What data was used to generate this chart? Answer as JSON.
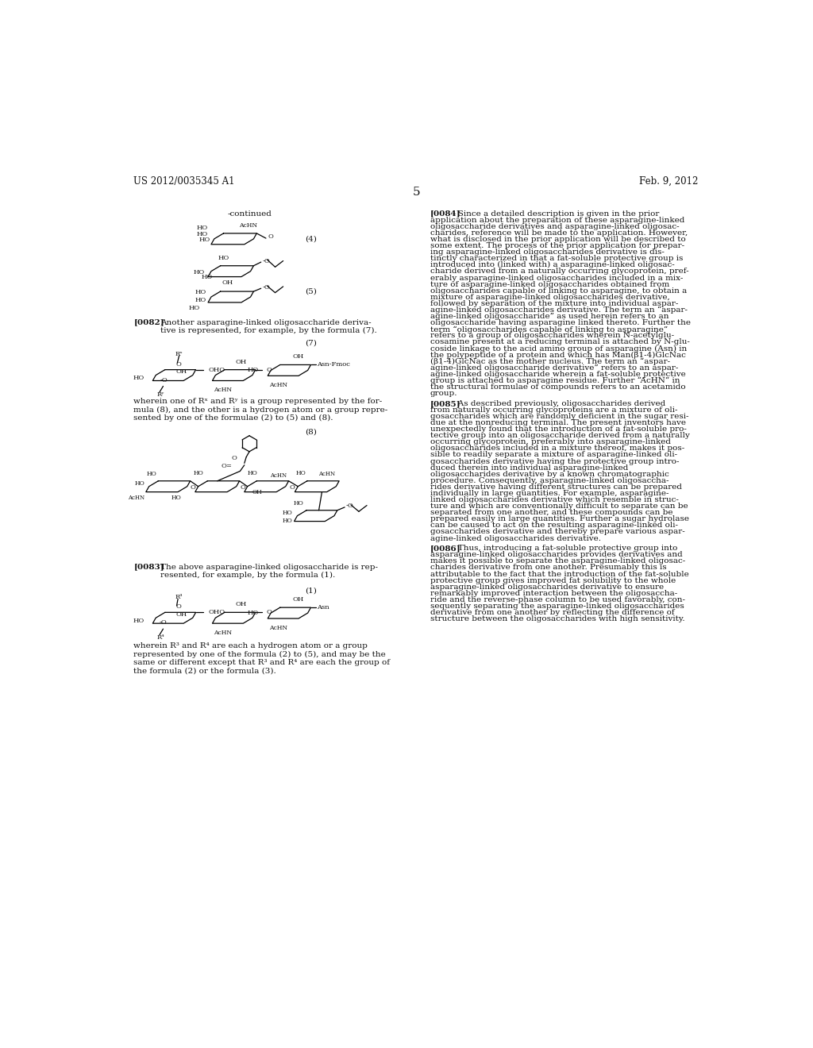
{
  "background_color": "#ffffff",
  "header_left": "US 2012/0035345 A1",
  "header_right": "Feb. 9, 2012",
  "page_number": "5",
  "para_0082_text": "Another asparagine-linked oligosaccharide deriva-\ntive is represented, for example, by the formula (7).",
  "para_0083_text": "The above asparagine-linked oligosaccharide is rep-\nresented, for example, by the formula (1).",
  "wherein_1": "wherein one of Rˣ and Rʸ is a group represented by the for-\nmula (8), and the other is a hydrogen atom or a group repre-\nsented by one of the formulae (2) to (5) and (8).",
  "wherein_2": "wherein R³ and R⁴ are each a hydrogen atom or a group\nrepresented by one of the formula (2) to (5), and may be the\nsame or different except that R³ and R⁴ are each the group of\nthe formula (2) or the formula (3).",
  "para_0084_tag": "[0084]",
  "para_0084": "Since a detailed description is given in the prior\napplication about the preparation of these asparagine-linked\noligosaccharide derivatives and asparagine-linked oligosac-\ncharides, reference will be made to the application. However,\nwhat is disclosed in the prior application will be described to\nsome extent. The process of the prior application for prepar-\ning asparagine-linked oligosaccharides derivative is dis-\ntinctly characterized in that a fat-soluble protective group is\nintroduced into (linked with) a asparagine-linked oligosac-\ncharide derived from a naturally occurring glycoprotein, pref-\nerably asparagine-linked oligosaccharides included in a mix-\nture of asparagine-linked oligosaccharides obtained from\noligosaccharides capable of linking to asparagine, to obtain a\nmixture of asparagine-linked oligosaccharides derivative,\nfollowed by separation of the mixture into individual aspar-\nagine-linked oligosaccharides derivative. The term an “aspar-\nagine-linked oligosaccharide” as used herein refers to an\noligosaccharide having asparagine linked thereto. Further the\nterm “oligosaccharides capable of linking to asparagine”\nrefers to a group of oligosaccharides wherein N-acetylglu-\ncosamine present at a reducing terminal is attached by N-glu-\ncoside linkage to the acid amino group of asparagine (Asn) in\nthe polypeptide of a protein and which has Man(β1-4)GlcNac\n(β1-4)GlcNac as the mother nucleus. The term an “aspar-\nagine-linked oligosaccharide derivative” refers to an aspar-\nagine-linked oligosaccharide wherein a fat-soluble protective\ngroup is attached to asparagine residue. Further “AcHN” in\nthe structural formulae of compounds refers to an acetamido\ngroup.",
  "para_0085_tag": "[0085]",
  "para_0085": "As described previously, oligosaccharides derived\nfrom naturally occurring glycoproteins are a mixture of oli-\ngosaccharides which are randomly deficient in the sugar resi-\ndue at the nonreducing terminal. The present inventors have\nunexpectedly found that the introduction of a fat-soluble pro-\ntective group into an oligosaccharide derived from a naturally\noccurring glycoprotein, preferably into asparagine-linked\noligosaccharides included in a mixture thereof, makes it pos-\nsible to readily separate a mixture of asparagine-linked oli-\ngosaccharides derivative having the protective group intro-\nduced therein into individual asparagine-linked\noligosaccharides derivative by a known chromatographic\nprocedure. Consequently, asparagine-linked oligosaccha-\nrides derivative having different structures can be prepared\nindividually in large quantities. For example, asparagine-\nlinked oligosaccharides derivative which resemble in struc-\nture and which are conventionally difficult to separate can be\nseparated from one another, and these compounds can be\nprepared easily in large quantities. Further a sugar hydrolase\ncan be caused to act on the resulting asparagine-linked oli-\ngosaccharides derivative and thereby prepare various aspar-\nagine-linked oligosaccharides derivative.",
  "para_0086_tag": "[0086]",
  "para_0086": "Thus, introducing a fat-soluble protective group into\nasparagine-linked oligosaccharides provides derivatives and\nmakes it possible to separate the asparagine-linked oligosac-\ncharides derivative from one another. Presumably this is\nattributable to the fact that the introduction of the fat-soluble\nprotective group gives improved fat solubility to the whole\nasparagine-linked oligosaccharides derivative to ensure\nremarkably improved interaction between the oligosaccha-\nride and the reverse-phase column to be used favorably, con-\nsequently separating the asparagine-linked oligosaccharides\nderivative from one another by reflecting the difference of\nstructure between the oligosaccharides with high sensitivity."
}
